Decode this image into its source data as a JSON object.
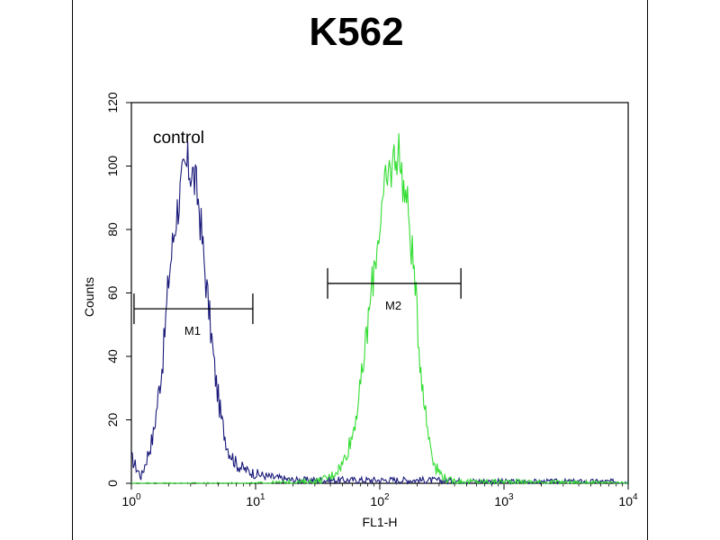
{
  "chart_data": {
    "type": "line",
    "title": "K562",
    "xlabel": "FL1-H",
    "ylabel": "Counts",
    "x_scale": "log",
    "xlim": [
      1,
      10000
    ],
    "ylim": [
      0,
      120
    ],
    "x_ticks": [
      {
        "value": 1,
        "base": "10",
        "exp": "0"
      },
      {
        "value": 10,
        "base": "10",
        "exp": "1"
      },
      {
        "value": 100,
        "base": "10",
        "exp": "2"
      },
      {
        "value": 1000,
        "base": "10",
        "exp": "3"
      },
      {
        "value": 10000,
        "base": "10",
        "exp": "4"
      }
    ],
    "y_ticks": [
      "0",
      "20",
      "40",
      "60",
      "80",
      "100",
      "120"
    ],
    "annotation": "control",
    "grid": false,
    "series": [
      {
        "color": "#1a1a7a",
        "x": [
          1.0,
          1.2,
          1.5,
          1.8,
          2.0,
          2.3,
          2.6,
          2.8,
          3.0,
          3.2,
          3.5,
          3.8,
          4.2,
          4.7,
          5.3,
          6.0,
          7.0,
          8.5,
          10,
          13,
          20,
          50,
          200,
          1000,
          10000
        ],
        "y": [
          8,
          2,
          15,
          40,
          65,
          85,
          96,
          100,
          99,
          96,
          88,
          72,
          55,
          35,
          20,
          11,
          6,
          4,
          3,
          2,
          1,
          1,
          1,
          0.5,
          0.5
        ]
      },
      {
        "color": "#33dd33",
        "x": [
          1,
          10,
          30,
          40,
          50,
          60,
          70,
          80,
          90,
          100,
          110,
          120,
          130,
          140,
          150,
          170,
          190,
          210,
          240,
          280,
          350,
          500,
          1000,
          10000
        ],
        "y": [
          0,
          0,
          0.5,
          2,
          6,
          15,
          30,
          50,
          68,
          82,
          92,
          98,
          102,
          106,
          98,
          85,
          65,
          40,
          18,
          5,
          1,
          0.5,
          0.5,
          0
        ]
      }
    ],
    "markers": [
      {
        "label": "M1",
        "x_start": 1.05,
        "x_end": 9.5,
        "y": 55
      },
      {
        "label": "M2",
        "x_start": 38,
        "x_end": 450,
        "y": 63
      }
    ]
  }
}
